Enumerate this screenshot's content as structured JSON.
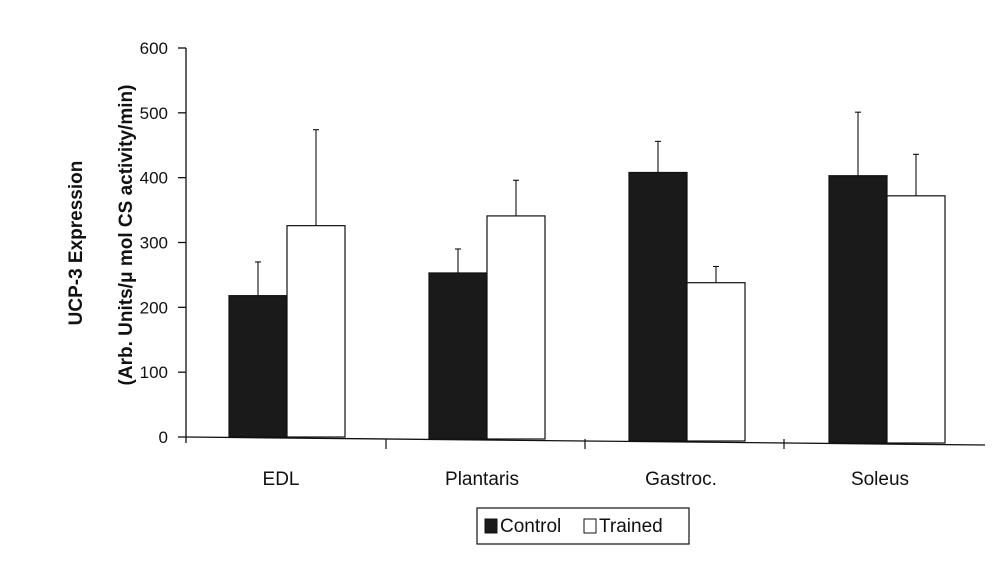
{
  "chart_data": {
    "type": "bar",
    "categories": [
      "EDL",
      "Plantaris",
      "Gastroc.",
      "Soleus"
    ],
    "series": [
      {
        "name": "Control",
        "values": [
          218,
          253,
          408,
          403
        ],
        "errors": [
          52,
          37,
          48,
          98
        ],
        "color": "#1a1a1a"
      },
      {
        "name": "Trained",
        "values": [
          326,
          341,
          238,
          372
        ],
        "errors": [
          148,
          55,
          25,
          64
        ],
        "color": "#ffffff"
      }
    ],
    "ylabel_line1": "UCP-3 Expression",
    "ylabel_line2": "(Arb. Units/μ mol CS activity/min)",
    "ylim": [
      0,
      600
    ],
    "yticks": [
      0,
      100,
      200,
      300,
      400,
      500,
      600
    ],
    "grid": false,
    "legend_position": "bottom-center"
  }
}
